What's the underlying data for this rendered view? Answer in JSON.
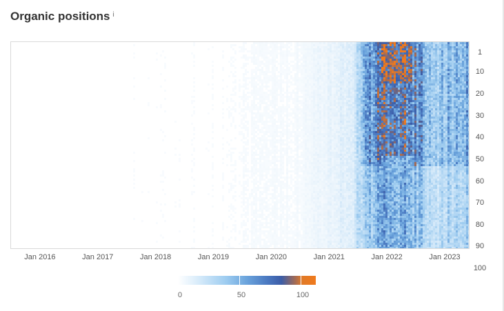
{
  "header": {
    "title": "Organic positions",
    "info_icon_label": "i"
  },
  "chart_data": {
    "type": "heatmap",
    "title": "Organic positions",
    "x_tick_labels": [
      "Jan 2016",
      "Jan 2017",
      "Jan 2018",
      "Jan 2019",
      "Jan 2020",
      "Jan 2021",
      "Jan 2022",
      "Jan 2023"
    ],
    "x_start": "2015-07",
    "x_end": "2023-06",
    "y_tick_labels": [
      "1",
      "10",
      "20",
      "30",
      "40",
      "50",
      "60",
      "70",
      "80",
      "90",
      "100"
    ],
    "y_range": [
      1,
      100
    ],
    "y_inverted": true,
    "legend": {
      "labels": [
        "0",
        "50",
        "100"
      ],
      "range": [
        0,
        100
      ]
    },
    "colors": {
      "low": "#ffffff",
      "light": "#d7ebfa",
      "mid": "#6aa3dc",
      "high": "#3c5da7",
      "peak": "#f07a1c"
    },
    "intensity_by_year": [
      {
        "period": "2016",
        "level": 1
      },
      {
        "period": "2017",
        "level": 2
      },
      {
        "period": "2018",
        "level": 2
      },
      {
        "period": "2019",
        "level": 3
      },
      {
        "period": "2020",
        "level": 4
      },
      {
        "period": "mid 2021",
        "level": 20
      },
      {
        "period": "late 2021",
        "level": 40
      },
      {
        "period": "early 2022",
        "level": 70
      },
      {
        "period": "mid 2022",
        "level": 55
      },
      {
        "period": "late 2022",
        "level": 30
      },
      {
        "period": "2023",
        "level": 35
      }
    ],
    "peak_cells": [
      {
        "period": "early 2022",
        "position_from": 10,
        "position_to": 15,
        "value": 100
      },
      {
        "period": "early 2022",
        "position_from": 23,
        "position_to": 25,
        "value": 85
      }
    ]
  }
}
